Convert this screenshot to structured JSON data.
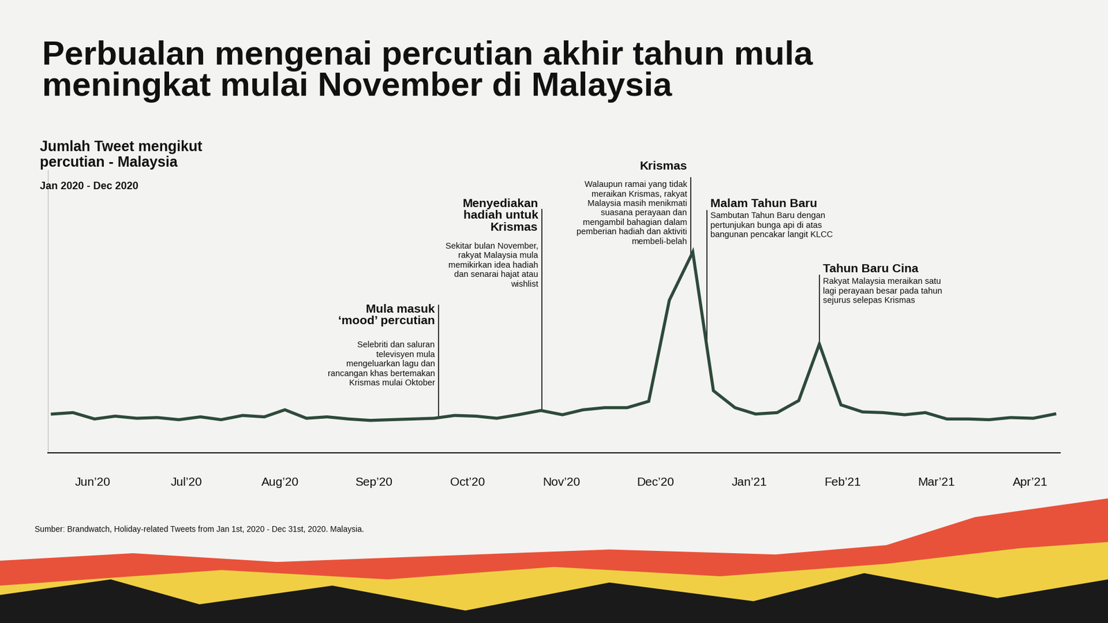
{
  "chart_data": {
    "type": "line",
    "title": "Perbualan mengenai percutian akhir tahun mula\nmeningkat mulai November di Malaysia",
    "subtitle": "Jumlah Tweet mengikut\npercutian - Malaysia",
    "period": "Jan 2020 - Dec 2020",
    "source": "Sumber: Brandwatch, Holiday-related Tweets from Jan 1st, 2020 - Dec 31st, 2020. Malaysia.",
    "x": [
      -0.43,
      -0.21,
      0.02,
      0.24,
      0.47,
      0.69,
      0.92,
      1.15,
      1.37,
      1.6,
      1.83,
      2.05,
      2.28,
      2.5,
      2.73,
      2.96,
      3.18,
      3.41,
      3.64,
      3.86,
      4.09,
      4.31,
      4.54,
      4.78,
      5.01,
      5.23,
      5.46,
      5.7,
      5.93,
      6.15,
      6.4,
      6.62,
      6.85,
      7.07,
      7.3,
      7.53,
      7.75,
      7.98,
      8.21,
      8.43,
      8.66,
      8.88,
      9.11,
      9.34,
      9.56,
      9.79,
      10.03,
      10.26
    ],
    "values": [
      55,
      57,
      48,
      52,
      49,
      50,
      47,
      51,
      47,
      53,
      51,
      61,
      49,
      51,
      48,
      46,
      47,
      48,
      49,
      53,
      52,
      49,
      54,
      60,
      54,
      61,
      64,
      64,
      73,
      216,
      284,
      88,
      64,
      55,
      57,
      74,
      154,
      68,
      58,
      57,
      54,
      57,
      48,
      48,
      47,
      50,
      49,
      55
    ],
    "color": "#2d4a3a",
    "xlim": [
      -0.48,
      10.32
    ],
    "xticks": [
      {
        "value": 0,
        "label": "Jun’20"
      },
      {
        "value": 1,
        "label": "Jul’20"
      },
      {
        "value": 2,
        "label": "Aug’20"
      },
      {
        "value": 3,
        "label": "Sep’20"
      },
      {
        "value": 4,
        "label": "Oct’20"
      },
      {
        "value": 5,
        "label": "Nov’20"
      },
      {
        "value": 6,
        "label": "Dec’20"
      },
      {
        "value": 7,
        "label": "Jan’21"
      },
      {
        "value": 8,
        "label": "Feb’21"
      },
      {
        "value": 9,
        "label": "Mar’21"
      },
      {
        "value": 10,
        "label": "Apr’21"
      }
    ],
    "ylim": [
      0,
      400
    ],
    "yticks": [],
    "tick_labels": "x",
    "grid": false,
    "annotations": [
      {
        "x": 3.69,
        "title": "Mula masuk\n‘mood’ percutian",
        "text": "Selebriti dan saluran\ntelevisyen mula\nmengeluarkan lagu dan\nrancangan khas bertemakan\nKrismas mulai Oktober"
      },
      {
        "x": 4.79,
        "title": "Menyediakan\nhadiah untuk\nKrismas",
        "text": "Sekitar bulan November,\nrakyat Malaysia mula\nmemikirkan idea hadiah\ndan senarai hajat atau\nwishlist"
      },
      {
        "x": 6.38,
        "title": "Krismas",
        "text": "Walaupun ramai yang tidak\nmeraikan Krismas, rakyat\nMalaysia masih menikmati\nsuasana perayaan dan\nmengambil bahagian dalam\npemberian hadiah dan aktiviti\nmembeli-belah"
      },
      {
        "x": 6.55,
        "title": "Malam Tahun Baru",
        "text": "Sambutan Tahun Baru dengan\npertunjukan bunga api di atas\nbangunan pencakar langit KLCC"
      },
      {
        "x": 7.75,
        "title": "Tahun Baru Cina",
        "text": "Rakyat Malaysia meraikan satu\nlagi perayaan besar pada tahun\nsejurus selepas Krismas"
      }
    ]
  }
}
